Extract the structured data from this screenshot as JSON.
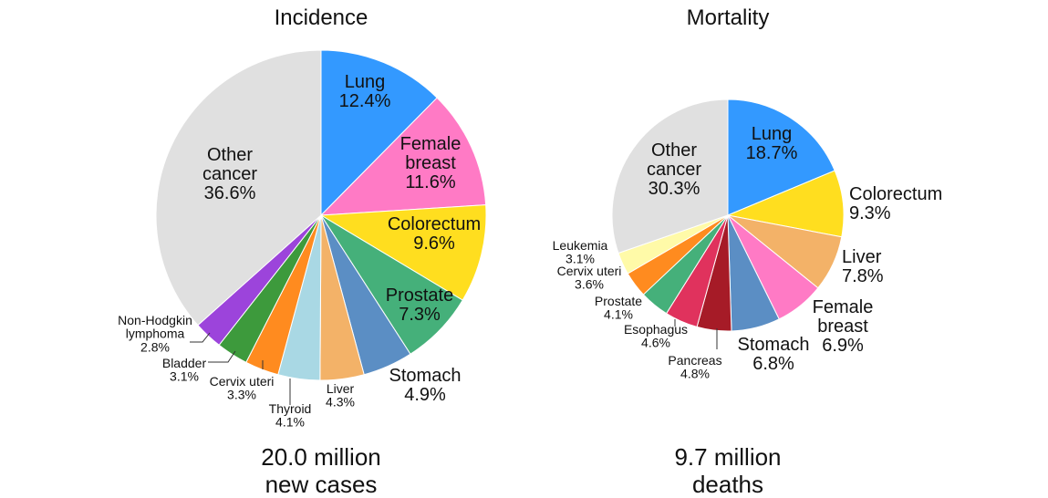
{
  "chart_data": [
    {
      "type": "pie",
      "title": "Incidence",
      "caption": [
        "20.0 million",
        "new cases"
      ],
      "slices": [
        {
          "label": "Lung",
          "value": 12.4,
          "text": "12.4%",
          "color": "#3399ff"
        },
        {
          "label": "Female breast",
          "label_lines": [
            "Female",
            "breast"
          ],
          "value": 11.6,
          "text": "11.6%",
          "color": "#ff7ac5"
        },
        {
          "label": "Colorectum",
          "value": 9.6,
          "text": "9.6%",
          "color": "#ffde1f"
        },
        {
          "label": "Prostate",
          "value": 7.3,
          "text": "7.3%",
          "color": "#45b07a"
        },
        {
          "label": "Stomach",
          "value": 4.9,
          "text": "4.9%",
          "color": "#5b8ec4"
        },
        {
          "label": "Liver",
          "value": 4.3,
          "text": "4.3%",
          "color": "#f3b268"
        },
        {
          "label": "Thyroid",
          "value": 4.1,
          "text": "4.1%",
          "color": "#a9d8e4"
        },
        {
          "label": "Cervix uteri",
          "value": 3.3,
          "text": "3.3%",
          "color": "#ff8b1f"
        },
        {
          "label": "Bladder",
          "value": 3.1,
          "text": "3.1%",
          "color": "#3d9a3c"
        },
        {
          "label": "Non-Hodgkin lymphoma",
          "label_lines": [
            "Non-Hodgkin",
            "lymphoma"
          ],
          "value": 2.8,
          "text": "2.8%",
          "color": "#9c44db"
        },
        {
          "label": "Other cancer",
          "label_lines": [
            "Other",
            "cancer"
          ],
          "value": 36.6,
          "text": "36.6%",
          "color": "#e0e0e0"
        }
      ]
    },
    {
      "type": "pie",
      "title": "Mortality",
      "caption": [
        "9.7 million",
        "deaths"
      ],
      "slices": [
        {
          "label": "Lung",
          "value": 18.7,
          "text": "18.7%",
          "color": "#3399ff"
        },
        {
          "label": "Colorectum",
          "value": 9.3,
          "text": "9.3%",
          "color": "#ffde1f"
        },
        {
          "label": "Liver",
          "value": 7.8,
          "text": "7.8%",
          "color": "#f3b268"
        },
        {
          "label": "Female breast",
          "label_lines": [
            "Female",
            "breast"
          ],
          "value": 6.9,
          "text": "6.9%",
          "color": "#ff7ac5"
        },
        {
          "label": "Stomach",
          "value": 6.8,
          "text": "6.8%",
          "color": "#5b8ec4"
        },
        {
          "label": "Pancreas",
          "value": 4.8,
          "text": "4.8%",
          "color": "#a61b27"
        },
        {
          "label": "Esophagus",
          "value": 4.6,
          "text": "4.6%",
          "color": "#e0325d"
        },
        {
          "label": "Prostate",
          "value": 4.1,
          "text": "4.1%",
          "color": "#45b07a"
        },
        {
          "label": "Cervix uteri",
          "value": 3.6,
          "text": "3.6%",
          "color": "#ff8b1f"
        },
        {
          "label": "Leukemia",
          "value": 3.1,
          "text": "3.1%",
          "color": "#fffaa8"
        },
        {
          "label": "Other cancer",
          "label_lines": [
            "Other",
            "cancer"
          ],
          "value": 30.3,
          "text": "30.3%",
          "color": "#e0e0e0"
        }
      ]
    }
  ]
}
